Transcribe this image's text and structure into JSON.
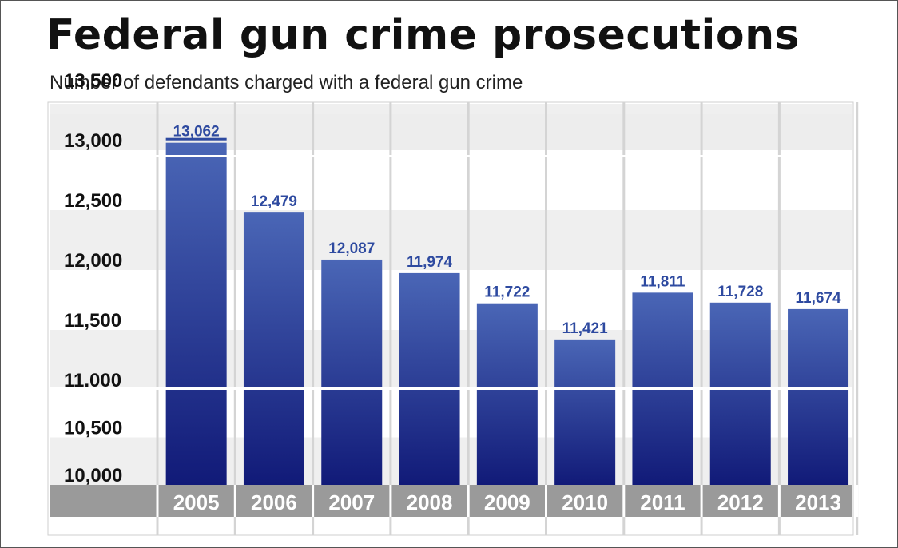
{
  "title": "Federal gun crime prosecutions",
  "subtitle": "Number of defendants charged with a federal gun crime",
  "colors": {
    "bar_top": "#4a66b6",
    "bar_bottom": "#111a78",
    "value_label": "#2e4aa0",
    "axis_band": "#9a9a9a"
  },
  "chart_data": {
    "type": "bar",
    "title": "Federal gun crime prosecutions",
    "subtitle": "Number of defendants charged with a federal gun crime",
    "categories": [
      "2005",
      "2006",
      "2007",
      "2008",
      "2009",
      "2010",
      "2011",
      "2012",
      "2013"
    ],
    "values": [
      13062,
      12479,
      12087,
      11974,
      11722,
      11421,
      11811,
      11728,
      11674
    ],
    "value_labels": [
      "13,062",
      "12,479",
      "12,087",
      "11,974",
      "11,722",
      "11,421",
      "11,811",
      "11,728",
      "11,674"
    ],
    "yticks": [
      "10,000",
      "10,500",
      "11,000",
      "11,500",
      "12,000",
      "12,500",
      "13,000",
      "13,500"
    ],
    "ylim": [
      10000,
      13500
    ],
    "axis_break": true,
    "grid": true,
    "legend": "none"
  }
}
